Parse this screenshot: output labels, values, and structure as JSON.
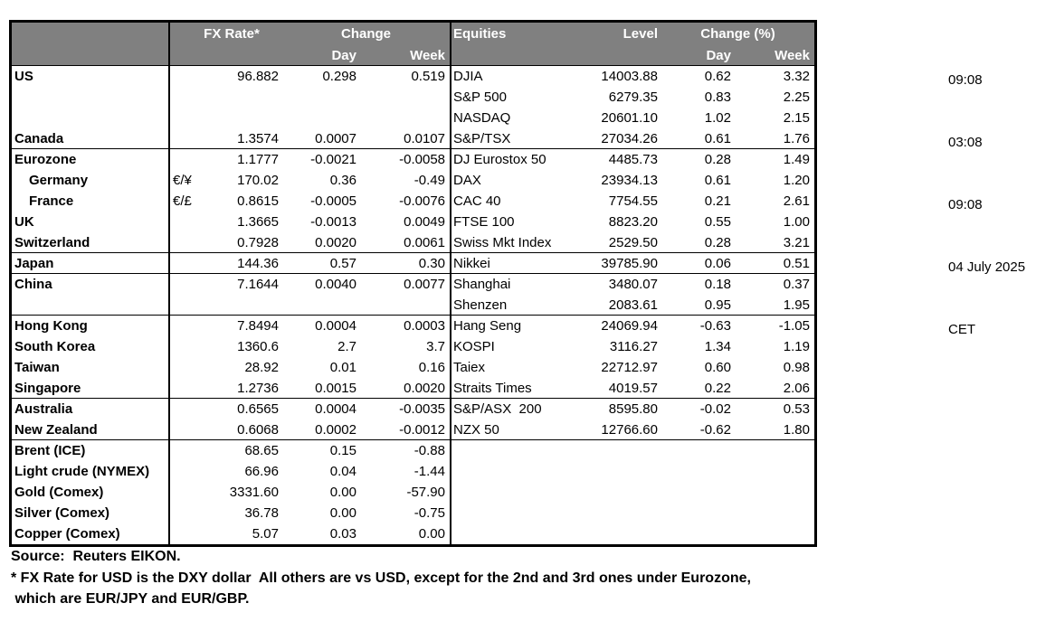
{
  "table": {
    "header": {
      "fx_rate": "FX Rate*",
      "change": "Change",
      "day": "Day",
      "week": "Week",
      "equities": "Equities",
      "level": "Level",
      "change_pct": "Change (%)",
      "day2": "Day",
      "week2": "Week"
    },
    "colors": {
      "header_bg": "#808080",
      "header_text": "#ffffff",
      "border": "#000000"
    },
    "rows": [
      {
        "label": "US",
        "indent": false,
        "sym": "",
        "fx": "96.882",
        "day": "0.298",
        "week": "0.519",
        "equity": "DJIA",
        "level": "14003.88",
        "eday": "0.62",
        "eweek": "3.32",
        "section_end": false
      },
      {
        "label": "",
        "indent": false,
        "sym": "",
        "fx": "",
        "day": "",
        "week": "",
        "equity": "S&P 500",
        "level": "6279.35",
        "eday": "0.83",
        "eweek": "2.25",
        "section_end": false
      },
      {
        "label": "",
        "indent": false,
        "sym": "",
        "fx": "",
        "day": "",
        "week": "",
        "equity": "NASDAQ",
        "level": "20601.10",
        "eday": "1.02",
        "eweek": "2.15",
        "section_end": false
      },
      {
        "label": "Canada",
        "indent": false,
        "sym": "",
        "fx": "1.3574",
        "day": "0.0007",
        "week": "0.0107",
        "equity": "S&P/TSX",
        "level": "27034.26",
        "eday": "0.61",
        "eweek": "1.76",
        "section_end": true
      },
      {
        "label": "Eurozone",
        "indent": false,
        "sym": "",
        "fx": "1.1777",
        "day": "-0.0021",
        "week": "-0.0058",
        "equity": "DJ Eurostox 50",
        "level": "4485.73",
        "eday": "0.28",
        "eweek": "1.49",
        "section_end": false
      },
      {
        "label": "Germany",
        "indent": true,
        "sym": "€/¥",
        "fx": "170.02",
        "day": "0.36",
        "week": "-0.49",
        "equity": "DAX",
        "level": "23934.13",
        "eday": "0.61",
        "eweek": "1.20",
        "section_end": false
      },
      {
        "label": "France",
        "indent": true,
        "sym": "€/£",
        "fx": "0.8615",
        "day": "-0.0005",
        "week": "-0.0076",
        "equity": "CAC 40",
        "level": "7754.55",
        "eday": "0.21",
        "eweek": "2.61",
        "section_end": false
      },
      {
        "label": "UK",
        "indent": false,
        "sym": "",
        "fx": "1.3665",
        "day": "-0.0013",
        "week": "0.0049",
        "equity": "FTSE 100",
        "level": "8823.20",
        "eday": "0.55",
        "eweek": "1.00",
        "section_end": false
      },
      {
        "label": "Switzerland",
        "indent": false,
        "sym": "",
        "fx": "0.7928",
        "day": "0.0020",
        "week": "0.0061",
        "equity": "Swiss Mkt Index",
        "level": "2529.50",
        "eday": "0.28",
        "eweek": "3.21",
        "section_end": true
      },
      {
        "label": "Japan",
        "indent": false,
        "sym": "",
        "fx": "144.36",
        "day": "0.57",
        "week": "0.30",
        "equity": "Nikkei",
        "level": "39785.90",
        "eday": "0.06",
        "eweek": "0.51",
        "section_end": true
      },
      {
        "label": "China",
        "indent": false,
        "sym": "",
        "fx": "7.1644",
        "day": "0.0040",
        "week": "0.0077",
        "equity": "Shanghai",
        "level": "3480.07",
        "eday": "0.18",
        "eweek": "0.37",
        "section_end": false
      },
      {
        "label": "",
        "indent": false,
        "sym": "",
        "fx": "",
        "day": "",
        "week": "",
        "equity": "Shenzen",
        "level": "2083.61",
        "eday": "0.95",
        "eweek": "1.95",
        "section_end": true
      },
      {
        "label": "Hong Kong",
        "indent": false,
        "sym": "",
        "fx": "7.8494",
        "day": "0.0004",
        "week": "0.0003",
        "equity": "Hang Seng",
        "level": "24069.94",
        "eday": "-0.63",
        "eweek": "-1.05",
        "section_end": false
      },
      {
        "label": "South Korea",
        "indent": false,
        "sym": "",
        "fx": "1360.6",
        "day": "2.7",
        "week": "3.7",
        "equity": "KOSPI",
        "level": "3116.27",
        "eday": "1.34",
        "eweek": "1.19",
        "section_end": false
      },
      {
        "label": "Taiwan",
        "indent": false,
        "sym": "",
        "fx": "28.92",
        "day": "0.01",
        "week": "0.16",
        "equity": "Taiex",
        "level": "22712.97",
        "eday": "0.60",
        "eweek": "0.98",
        "section_end": false
      },
      {
        "label": "Singapore",
        "indent": false,
        "sym": "",
        "fx": "1.2736",
        "day": "0.0015",
        "week": "0.0020",
        "equity": "Straits Times",
        "level": "4019.57",
        "eday": "0.22",
        "eweek": "2.06",
        "section_end": true
      },
      {
        "label": "Australia",
        "indent": false,
        "sym": "",
        "fx": "0.6565",
        "day": "0.0004",
        "week": "-0.0035",
        "equity": "S&P/ASX  200",
        "level": "8595.80",
        "eday": "-0.02",
        "eweek": "0.53",
        "section_end": false
      },
      {
        "label": "New Zealand",
        "indent": false,
        "sym": "",
        "fx": "0.6068",
        "day": "0.0002",
        "week": "-0.0012",
        "equity": "NZX 50",
        "level": "12766.60",
        "eday": "-0.62",
        "eweek": "1.80",
        "section_end": true
      },
      {
        "label": "Brent (ICE)",
        "indent": false,
        "sym": "",
        "fx": "68.65",
        "day": "0.15",
        "week": "-0.88",
        "equity": "",
        "level": "",
        "eday": "",
        "eweek": "",
        "section_end": false
      },
      {
        "label": "Light crude (NYMEX)",
        "indent": false,
        "sym": "",
        "fx": "66.96",
        "day": "0.04",
        "week": "-1.44",
        "equity": "",
        "level": "",
        "eday": "",
        "eweek": "",
        "section_end": false
      },
      {
        "label": "Gold (Comex)",
        "indent": false,
        "sym": "",
        "fx": "3331.60",
        "day": "0.00",
        "week": "-57.90",
        "equity": "",
        "level": "",
        "eday": "",
        "eweek": "",
        "section_end": false
      },
      {
        "label": "Silver (Comex)",
        "indent": false,
        "sym": "",
        "fx": "36.78",
        "day": "0.00",
        "week": "-0.75",
        "equity": "",
        "level": "",
        "eday": "",
        "eweek": "",
        "section_end": false
      },
      {
        "label": "Copper (Comex)",
        "indent": false,
        "sym": "",
        "fx": "5.07",
        "day": "0.03",
        "week": "0.00",
        "equity": "",
        "level": "",
        "eday": "",
        "eweek": "",
        "section_end": false
      }
    ]
  },
  "timestamps": [
    "09:08",
    "03:08",
    "09:08",
    "04 July 2025",
    "CET"
  ],
  "footnotes": {
    "source": "Source:  Reuters EIKON.",
    "line1": "* FX Rate for USD is the DXY dollar  All others are vs USD, except for the 2nd and 3rd ones under Eurozone,",
    "line2": " which are EUR/JPY and EUR/GBP."
  }
}
